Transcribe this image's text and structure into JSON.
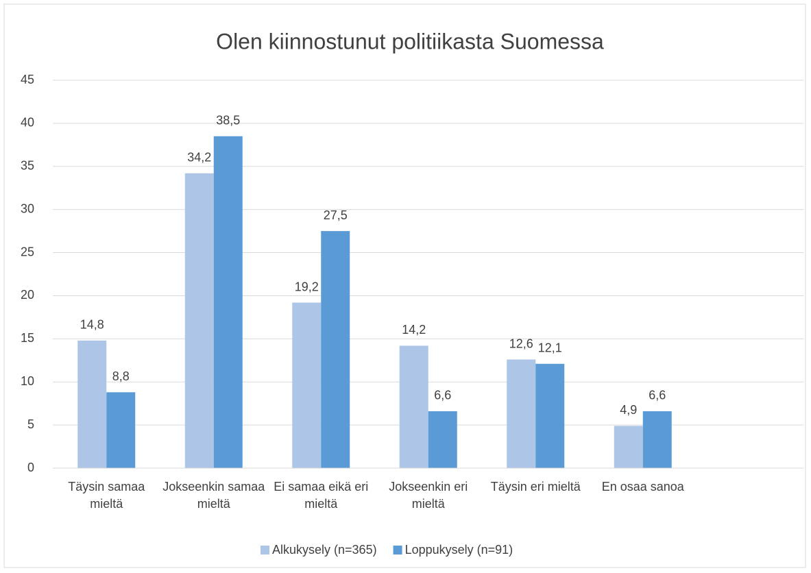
{
  "chart_data": {
    "type": "bar",
    "title": "Olen kiinnostunut politiikasta Suomessa",
    "categories": [
      "Täysin samaa mieltä",
      "Jokseenkin samaa mieltä",
      "Ei samaa eikä eri mieltä",
      "Jokseenkin eri mieltä",
      "Täysin eri mieltä",
      "En osaa sanoa",
      null
    ],
    "series": [
      {
        "name": "Alkukysely (n=365)",
        "color": "#adc5e7",
        "values": [
          14.8,
          34.2,
          19.2,
          14.2,
          12.6,
          4.9,
          null
        ],
        "value_labels": [
          "14,8",
          "34,2",
          "19,2",
          "14,2",
          "12,6",
          "4,9",
          null
        ]
      },
      {
        "name": "Loppukysely (n=91)",
        "color": "#5b9bd5",
        "values": [
          8.8,
          38.5,
          27.5,
          6.6,
          12.1,
          6.6,
          null
        ],
        "value_labels": [
          "8,8",
          "38,5",
          "27,5",
          "6,6",
          "12,1",
          "6,6",
          null
        ]
      }
    ],
    "ylim": [
      0,
      45
    ],
    "yticks": [
      0,
      5,
      10,
      15,
      20,
      25,
      30,
      35,
      40,
      45
    ],
    "grid": true,
    "legend": "bottom"
  }
}
